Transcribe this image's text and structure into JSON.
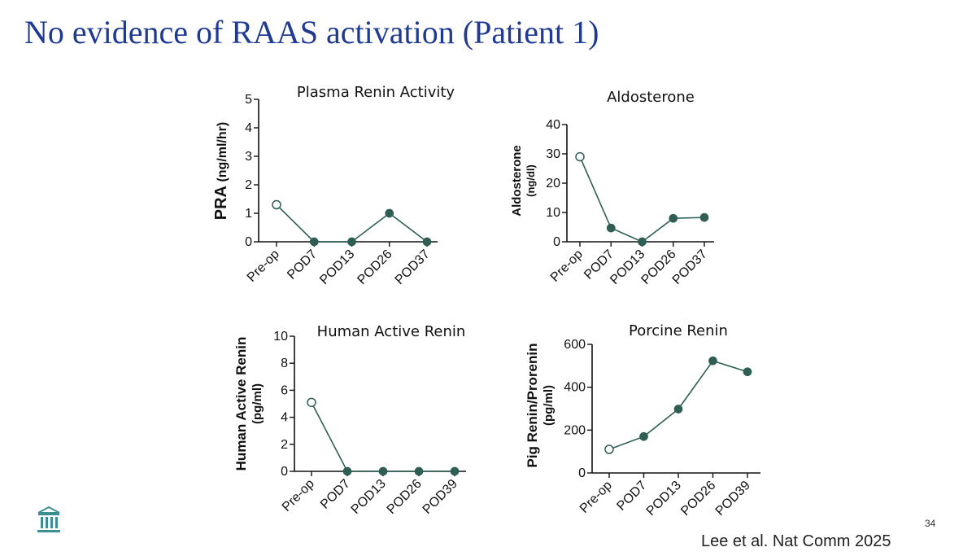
{
  "slide": {
    "title": "No evidence of RAAS activation (Patient 1)",
    "page_number": "34",
    "citation": "Lee et al. Nat Comm 2025"
  },
  "colors": {
    "title": "#1f3a93",
    "series": "#2e5e54",
    "logo": "#3a8f93"
  },
  "logo_icon": "institution-columns-icon",
  "chart_data": [
    {
      "type": "line",
      "title": "Plasma Renin Activity",
      "ylabel": "PRA",
      "ylabel_unit": "(ng/ml/hr)",
      "categories": [
        "Pre-op",
        "POD7",
        "POD13",
        "POD26",
        "POD37"
      ],
      "values": [
        1.3,
        0,
        0,
        1,
        0
      ],
      "open_marker_index": 0,
      "ylim": [
        0,
        5
      ],
      "yticks": [
        "0",
        "1",
        "2",
        "3",
        "4",
        "5"
      ]
    },
    {
      "type": "line",
      "title": "Aldosterone",
      "ylabel": "Aldosterone",
      "ylabel_unit": "(ng/dl)",
      "categories": [
        "Pre-op",
        "POD7",
        "POD13",
        "POD26",
        "POD37"
      ],
      "values": [
        29,
        4.7,
        0,
        8,
        8.3
      ],
      "open_marker_index": 0,
      "ylim": [
        0,
        40
      ],
      "yticks": [
        "0",
        "10",
        "20",
        "30",
        "40"
      ]
    },
    {
      "type": "line",
      "title": "Human Active Renin",
      "ylabel": "Human Active Renin",
      "ylabel_unit": "(pg/ml)",
      "categories": [
        "Pre-op",
        "POD7",
        "POD13",
        "POD26",
        "POD39"
      ],
      "values": [
        5.1,
        0,
        0,
        0,
        0
      ],
      "open_marker_index": 0,
      "ylim": [
        0,
        10
      ],
      "yticks": [
        "0",
        "2",
        "4",
        "6",
        "8",
        "10"
      ]
    },
    {
      "type": "line",
      "title": "Porcine Renin",
      "ylabel": "Pig Renin/Prorenin",
      "ylabel_unit": "(pg/ml)",
      "categories": [
        "Pre-op",
        "POD7",
        "POD13",
        "POD26",
        "POD39"
      ],
      "values": [
        110,
        170,
        298,
        523,
        472
      ],
      "open_marker_index": 0,
      "ylim": [
        0,
        600
      ],
      "yticks": [
        "0",
        "200",
        "400",
        "600"
      ]
    }
  ]
}
